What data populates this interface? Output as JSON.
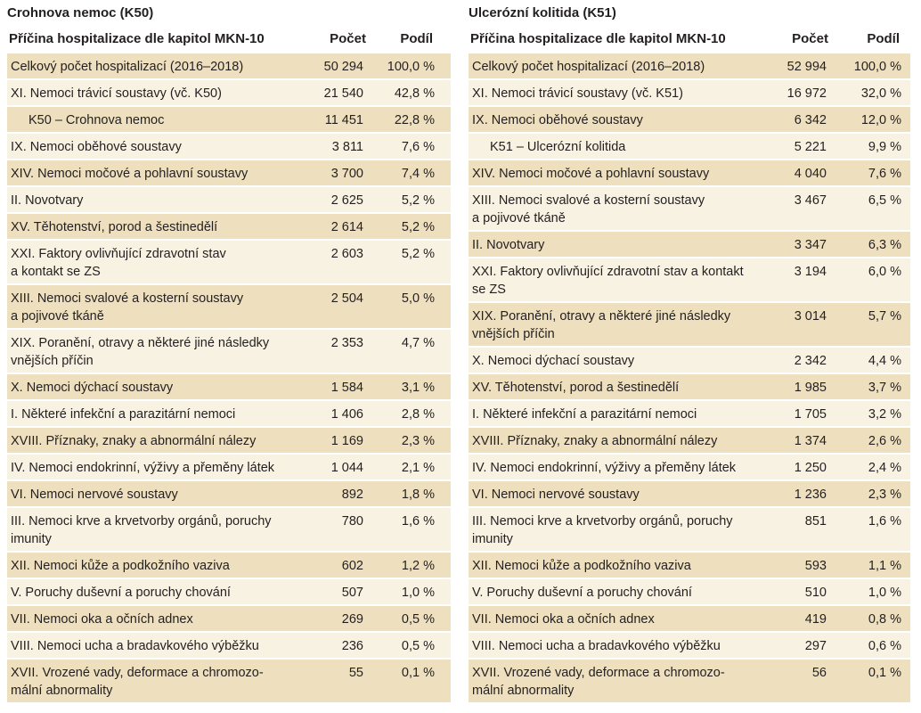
{
  "left": {
    "title": "Crohnova nemoc (K50)",
    "headers": {
      "cause": "Příčina hospitalizace dle kapitol MKN-10",
      "count": "Počet",
      "share": "Podíl"
    },
    "rows": [
      {
        "label": "Celkový počet hospitalizací (2016–2018)",
        "count": "50 294",
        "share": "100,0 %",
        "shade": "tan",
        "indent": false,
        "lines": 1
      },
      {
        "label": "XI. Nemoci trávicí soustavy (vč. K50)",
        "count": "21 540",
        "share": "42,8 %",
        "shade": "cream",
        "indent": false,
        "lines": 1
      },
      {
        "label": "K50 – Crohnova nemoc",
        "count": "11 451",
        "share": "22,8 %",
        "shade": "tan",
        "indent": true,
        "lines": 1
      },
      {
        "label": "IX. Nemoci oběhové soustavy",
        "count": "3 811",
        "share": "7,6 %",
        "shade": "cream",
        "indent": false,
        "lines": 1
      },
      {
        "label": "XIV. Nemoci močové a pohlavní soustavy",
        "count": "3 700",
        "share": "7,4 %",
        "shade": "tan",
        "indent": false,
        "lines": 1
      },
      {
        "label": "II. Novotvary",
        "count": "2 625",
        "share": "5,2 %",
        "shade": "cream",
        "indent": false,
        "lines": 1
      },
      {
        "label": "XV. Těhotenství, porod a šestinedělí",
        "count": "2 614",
        "share": "5,2 %",
        "shade": "tan",
        "indent": false,
        "lines": 1
      },
      {
        "label": "XXI. Faktory ovlivňující zdravotní stav\na kontakt se ZS",
        "count": "2 603",
        "share": "5,2 %",
        "shade": "cream",
        "indent": false,
        "lines": 2
      },
      {
        "label": "XIII. Nemoci svalové a kosterní soustavy\na pojivové tkáně",
        "count": "2 504",
        "share": "5,0 %",
        "shade": "tan",
        "indent": false,
        "lines": 2
      },
      {
        "label": "XIX. Poranění, otravy a některé jiné následky\nvnějších příčin",
        "count": "2 353",
        "share": "4,7 %",
        "shade": "cream",
        "indent": false,
        "lines": 2
      },
      {
        "label": "X. Nemoci dýchací soustavy",
        "count": "1 584",
        "share": "3,1 %",
        "shade": "tan",
        "indent": false,
        "lines": 1
      },
      {
        "label": "I. Některé infekční a parazitární nemoci",
        "count": "1 406",
        "share": "2,8 %",
        "shade": "cream",
        "indent": false,
        "lines": 1
      },
      {
        "label": "XVIII. Příznaky, znaky a abnormální nálezy",
        "count": "1 169",
        "share": "2,3 %",
        "shade": "tan",
        "indent": false,
        "lines": 1
      },
      {
        "label": "IV. Nemoci endokrinní, výživy a přeměny látek",
        "count": "1 044",
        "share": "2,1 %",
        "shade": "cream",
        "indent": false,
        "lines": 1
      },
      {
        "label": "VI. Nemoci nervové soustavy",
        "count": "892",
        "share": "1,8 %",
        "shade": "tan",
        "indent": false,
        "lines": 1
      },
      {
        "label": "III. Nemoci krve a krvetvorby orgánů, poruchy\nimunity",
        "count": "780",
        "share": "1,6 %",
        "shade": "cream",
        "indent": false,
        "lines": 2
      },
      {
        "label": "XII. Nemoci kůže a podkožního vaziva",
        "count": "602",
        "share": "1,2 %",
        "shade": "tan",
        "indent": false,
        "lines": 1
      },
      {
        "label": "V. Poruchy duševní a poruchy chování",
        "count": "507",
        "share": "1,0 %",
        "shade": "cream",
        "indent": false,
        "lines": 1
      },
      {
        "label": "VII. Nemoci oka a očních adnex",
        "count": "269",
        "share": "0,5 %",
        "shade": "tan",
        "indent": false,
        "lines": 1
      },
      {
        "label": "VIII. Nemoci ucha a bradavkového výběžku",
        "count": "236",
        "share": "0,5 %",
        "shade": "cream",
        "indent": false,
        "lines": 1
      },
      {
        "label": "XVII. Vrozené vady, deformace a chromozo-\nmální abnormality",
        "count": "55",
        "share": "0,1 %",
        "shade": "tan",
        "indent": false,
        "lines": 2
      }
    ]
  },
  "right": {
    "title": "Ulcerózní kolitida (K51)",
    "headers": {
      "cause": "Příčina hospitalizace dle kapitol MKN-10",
      "count": "Počet",
      "share": "Podíl"
    },
    "rows": [
      {
        "label": "Celkový počet hospitalizací (2016–2018)",
        "count": "52 994",
        "share": "100,0 %",
        "shade": "tan",
        "indent": false,
        "lines": 1
      },
      {
        "label": "XI. Nemoci trávicí soustavy (vč. K51)",
        "count": "16 972",
        "share": "32,0 %",
        "shade": "cream",
        "indent": false,
        "lines": 1
      },
      {
        "label": "IX. Nemoci oběhové soustavy",
        "count": "6 342",
        "share": "12,0 %",
        "shade": "tan",
        "indent": false,
        "lines": 1
      },
      {
        "label": "K51 – Ulcerózní kolitida",
        "count": "5 221",
        "share": "9,9 %",
        "shade": "cream",
        "indent": true,
        "lines": 1
      },
      {
        "label": "XIV. Nemoci močové a pohlavní soustavy",
        "count": "4 040",
        "share": "7,6 %",
        "shade": "tan",
        "indent": false,
        "lines": 1
      },
      {
        "label": "XIII. Nemoci svalové a kosterní soustavy\na pojivové tkáně",
        "count": "3 467",
        "share": "6,5 %",
        "shade": "cream",
        "indent": false,
        "lines": 2
      },
      {
        "label": "II. Novotvary",
        "count": "3 347",
        "share": "6,3 %",
        "shade": "tan",
        "indent": false,
        "lines": 1
      },
      {
        "label": "XXI. Faktory ovlivňující zdravotní stav a kontakt\nse ZS",
        "count": "3 194",
        "share": "6,0 %",
        "shade": "cream",
        "indent": false,
        "lines": 2
      },
      {
        "label": "XIX. Poranění, otravy a některé jiné následky\nvnějších příčin",
        "count": "3 014",
        "share": "5,7 %",
        "shade": "tan",
        "indent": false,
        "lines": 2
      },
      {
        "label": "X. Nemoci dýchací soustavy",
        "count": "2 342",
        "share": "4,4 %",
        "shade": "cream",
        "indent": false,
        "lines": 1
      },
      {
        "label": "XV. Těhotenství, porod a šestinedělí",
        "count": "1 985",
        "share": "3,7 %",
        "shade": "tan",
        "indent": false,
        "lines": 1
      },
      {
        "label": "I. Některé infekční a parazitární nemoci",
        "count": "1 705",
        "share": "3,2 %",
        "shade": "cream",
        "indent": false,
        "lines": 1
      },
      {
        "label": "XVIII. Příznaky, znaky a abnormální nálezy",
        "count": "1 374",
        "share": "2,6 %",
        "shade": "tan",
        "indent": false,
        "lines": 1
      },
      {
        "label": "IV. Nemoci endokrinní, výživy a přeměny látek",
        "count": "1 250",
        "share": "2,4 %",
        "shade": "cream",
        "indent": false,
        "lines": 1
      },
      {
        "label": "VI. Nemoci nervové soustavy",
        "count": "1 236",
        "share": "2,3 %",
        "shade": "tan",
        "indent": false,
        "lines": 1
      },
      {
        "label": "III. Nemoci krve a krvetvorby orgánů, poruchy\nimunity",
        "count": "851",
        "share": "1,6 %",
        "shade": "cream",
        "indent": false,
        "lines": 2
      },
      {
        "label": "XII. Nemoci kůže a podkožního vaziva",
        "count": "593",
        "share": "1,1 %",
        "shade": "tan",
        "indent": false,
        "lines": 1
      },
      {
        "label": "V. Poruchy duševní a poruchy chování",
        "count": "510",
        "share": "1,0 %",
        "shade": "cream",
        "indent": false,
        "lines": 1
      },
      {
        "label": "VII. Nemoci oka a očních adnex",
        "count": "419",
        "share": "0,8 %",
        "shade": "tan",
        "indent": false,
        "lines": 1
      },
      {
        "label": "VIII. Nemoci ucha a bradavkového výběžku",
        "count": "297",
        "share": "0,6 %",
        "shade": "cream",
        "indent": false,
        "lines": 1
      },
      {
        "label": "XVII. Vrozené vady, deformace a chromozo-\nmální abnormality",
        "count": "56",
        "share": "0,1 %",
        "shade": "tan",
        "indent": false,
        "lines": 2
      }
    ]
  },
  "colors": {
    "tan": "#eee0bf",
    "cream": "#f8f2e2"
  }
}
